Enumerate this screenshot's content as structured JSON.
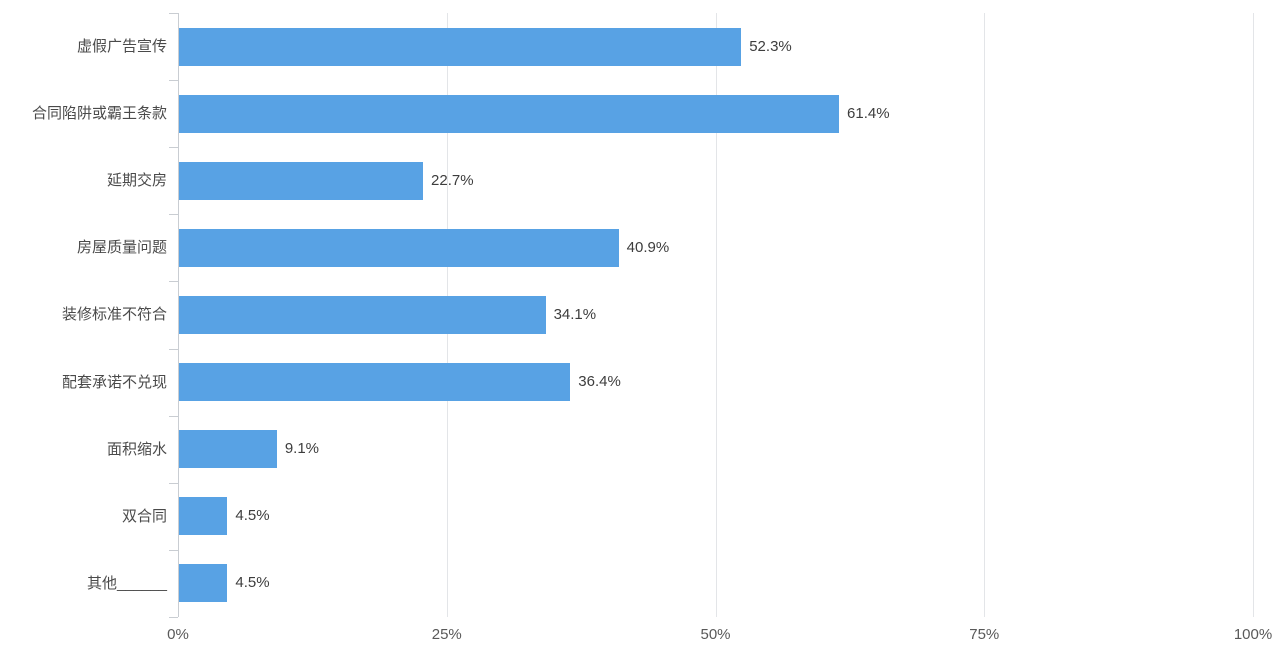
{
  "chart_data": {
    "type": "bar",
    "orientation": "horizontal",
    "title": "",
    "xlabel": "",
    "ylabel": "",
    "categories": [
      "虚假广告宣传",
      "合同陷阱或霸王条款",
      "延期交房",
      "房屋质量问题",
      "装修标准不符合",
      "配套承诺不兑现",
      "面积缩水",
      "双合同",
      "其他______"
    ],
    "values": [
      52.3,
      61.4,
      22.7,
      40.9,
      34.1,
      36.4,
      9.1,
      4.5,
      4.5
    ],
    "value_labels": [
      "52.3%",
      "61.4%",
      "22.7%",
      "40.9%",
      "34.1%",
      "36.4%",
      "9.1%",
      "4.5%",
      "4.5%"
    ],
    "xlim": [
      0,
      100
    ],
    "x_ticks": [
      {
        "value": 0,
        "label": "0%"
      },
      {
        "value": 25,
        "label": "25%"
      },
      {
        "value": 50,
        "label": "50%"
      },
      {
        "value": 75,
        "label": "75%"
      },
      {
        "value": 100,
        "label": "100%"
      }
    ],
    "grid": true,
    "legend": false,
    "colors": {
      "bar": "#58a2e4",
      "gridline": "#e3e5e8",
      "axis_line": "#c9cdd2",
      "category_label": "#4a4a4a",
      "value_label": "#3d3d3d",
      "tick_label": "#595959",
      "background": "#ffffff"
    }
  }
}
